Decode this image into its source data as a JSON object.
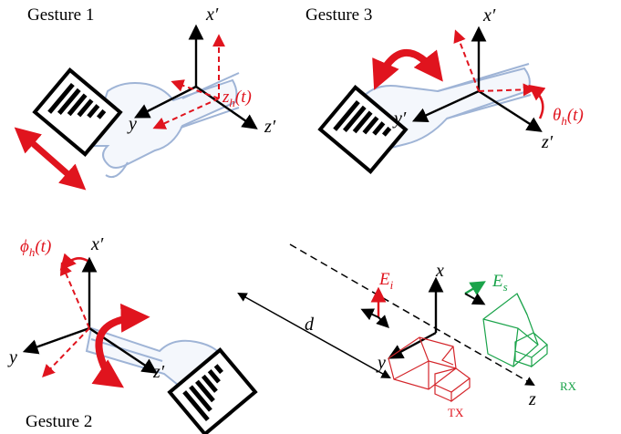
{
  "gestures": {
    "g1": {
      "title": "Gesture 1",
      "axis_x": "x′",
      "axis_y": "y",
      "axis_z": "z′",
      "param": "z",
      "param_sub": "h",
      "param_arg": "(t)"
    },
    "g3": {
      "title": "Gesture 3",
      "axis_x": "x′",
      "axis_y": "y′",
      "axis_z": "z′",
      "param": "θ",
      "param_sub": "h",
      "param_arg": "(t)"
    },
    "g2": {
      "title": "Gesture 2",
      "axis_x": "x′",
      "axis_y": "y",
      "axis_z": "z′",
      "param": "ϕ",
      "param_sub": "h",
      "param_arg": "(t)"
    }
  },
  "radar": {
    "distance_label": "d",
    "axis_x": "x",
    "axis_y": "y",
    "axis_z": "z",
    "incident_field": "E",
    "incident_sub": "i",
    "scattered_field": "E",
    "scattered_sub": "s",
    "tx_label": "TX",
    "rx_label": "RX"
  },
  "colors": {
    "red": "#e0141e",
    "green": "#1aa34a",
    "hand": "#9fb4d6"
  }
}
